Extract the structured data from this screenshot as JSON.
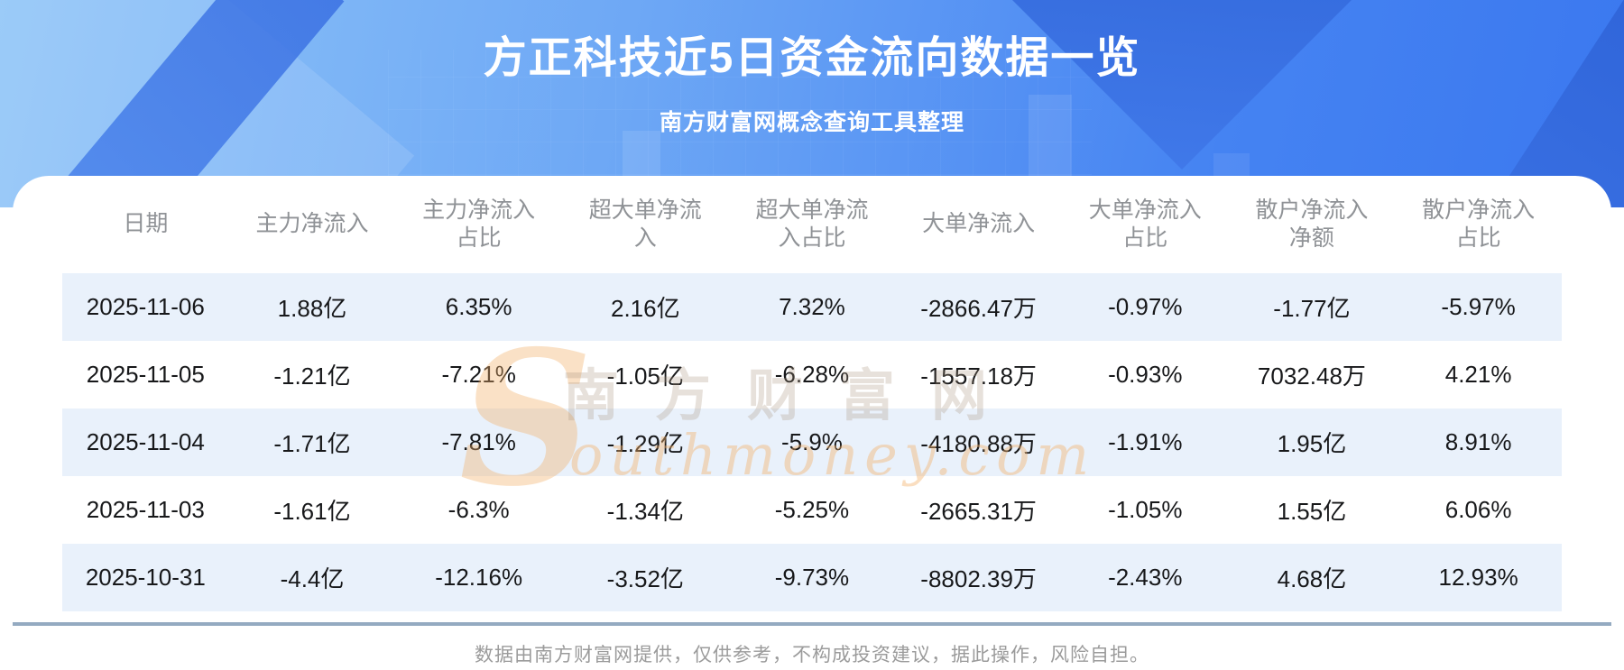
{
  "banner": {
    "title": "方正科技近5日资金流向数据一览",
    "subtitle": "南方财富网概念查询工具整理"
  },
  "chart_data": {
    "type": "table",
    "title": "方正科技近5日资金流向数据一览",
    "subtitle": "南方财富网概念查询工具整理",
    "columns": [
      "日期",
      "主力净流入",
      "主力净流入占比",
      "超大单净流入",
      "超大单净流入占比",
      "大单净流入",
      "大单净流入占比",
      "散户净流入净额",
      "散户净流入占比"
    ],
    "rows": [
      [
        "2025-11-06",
        "1.88亿",
        "6.35%",
        "2.16亿",
        "7.32%",
        "-2866.47万",
        "-0.97%",
        "-1.77亿",
        "-5.97%"
      ],
      [
        "2025-11-05",
        "-1.21亿",
        "-7.21%",
        "-1.05亿",
        "-6.28%",
        "-1557.18万",
        "-0.93%",
        "7032.48万",
        "4.21%"
      ],
      [
        "2025-11-04",
        "-1.71亿",
        "-7.81%",
        "-1.29亿",
        "-5.9%",
        "-4180.88万",
        "-1.91%",
        "1.95亿",
        "8.91%"
      ],
      [
        "2025-11-03",
        "-1.61亿",
        "-6.3%",
        "-1.34亿",
        "-5.25%",
        "-2665.31万",
        "-1.05%",
        "1.55亿",
        "6.06%"
      ],
      [
        "2025-10-31",
        "-4.4亿",
        "-12.16%",
        "-3.52亿",
        "-9.73%",
        "-8802.39万",
        "-2.43%",
        "4.68亿",
        "12.93%"
      ]
    ],
    "row_striping": "odd rows light blue #e9f1fb",
    "legend_position": "none",
    "grid": false
  },
  "watermark": {
    "initial": "S",
    "cn": "南方财富网",
    "en": "outhmoney.com"
  },
  "footer": {
    "disclaimer": "数据由南方财富网提供，仅供参考，不构成投资建议，据此操作，风险自担。"
  },
  "colors": {
    "banner_gradient_left": "#8ec4f8",
    "banner_gradient_right": "#3b78ef",
    "banner_dark_band": "#2c61d6",
    "title_text": "#ffffff",
    "header_text": "#8f9296",
    "cell_text": "#17181a",
    "row_stripe": "#e9f1fb",
    "card_bottom_edge": "#94aac1",
    "watermark_orange": "#f3b06a",
    "footer_text": "#9b9b9b"
  }
}
